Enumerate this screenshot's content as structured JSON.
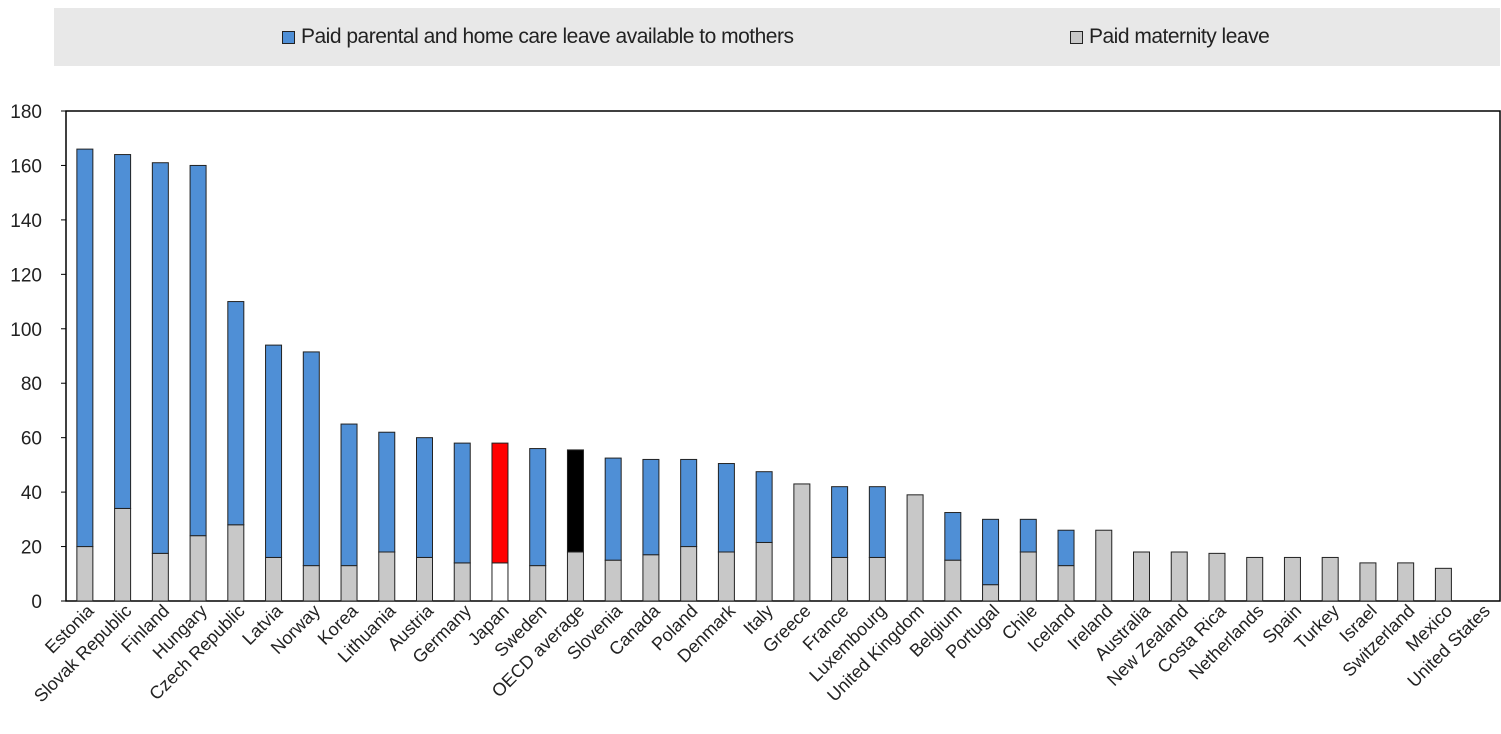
{
  "legend": {
    "parental_label": "Paid parental and home care leave available to mothers",
    "maternity_label": "Paid maternity leave"
  },
  "colors": {
    "parental": "#4f8fd6",
    "maternity": "#c8c8c8",
    "japan_parental": "#ff0000",
    "japan_maternity": "#ffffff",
    "oecd_parental": "#000000",
    "legend_bg": "#e8e8e8"
  },
  "chart_data": {
    "type": "bar",
    "stacked": true,
    "ylim": [
      0,
      180
    ],
    "yticks": [
      0,
      20,
      40,
      60,
      80,
      100,
      120,
      140,
      160,
      180
    ],
    "grid": false,
    "legend_position": "top",
    "categories": [
      "Estonia",
      "Slovak Republic",
      "Finland",
      "Hungary",
      "Czech Republic",
      "Latvia",
      "Norway",
      "Korea",
      "Lithuania",
      "Austria",
      "Germany",
      "Japan",
      "Sweden",
      "OECD average",
      "Slovenia",
      "Canada",
      "Poland",
      "Denmark",
      "Italy",
      "Greece",
      "France",
      "Luxembourg",
      "United Kingdom",
      "Belgium",
      "Portugal",
      "Chile",
      "Iceland",
      "Ireland",
      "Australia",
      "New Zealand",
      "Costa Rica",
      "Netherlands",
      "Spain",
      "Turkey",
      "Israel",
      "Switzerland",
      "Mexico",
      "United States"
    ],
    "series": [
      {
        "name": "Paid maternity leave",
        "values": [
          20,
          34,
          17.5,
          24,
          28,
          16,
          13,
          13,
          18,
          16,
          14,
          14,
          13,
          18,
          15,
          17,
          20,
          18,
          21.5,
          43,
          16,
          16,
          39,
          15,
          6,
          18,
          13,
          26,
          18,
          18,
          17.5,
          16,
          16,
          16,
          14,
          14,
          12,
          0
        ]
      },
      {
        "name": "Paid parental and home care leave available to mothers",
        "values": [
          146,
          130,
          143.5,
          136,
          82,
          78,
          78.5,
          52,
          44,
          44,
          44,
          44,
          43,
          37.5,
          37.5,
          35,
          32,
          32.5,
          26,
          0,
          26,
          26,
          0,
          17.5,
          24,
          12,
          13,
          0,
          0,
          0,
          0,
          0,
          0,
          0,
          0,
          0,
          0,
          0
        ]
      }
    ]
  }
}
